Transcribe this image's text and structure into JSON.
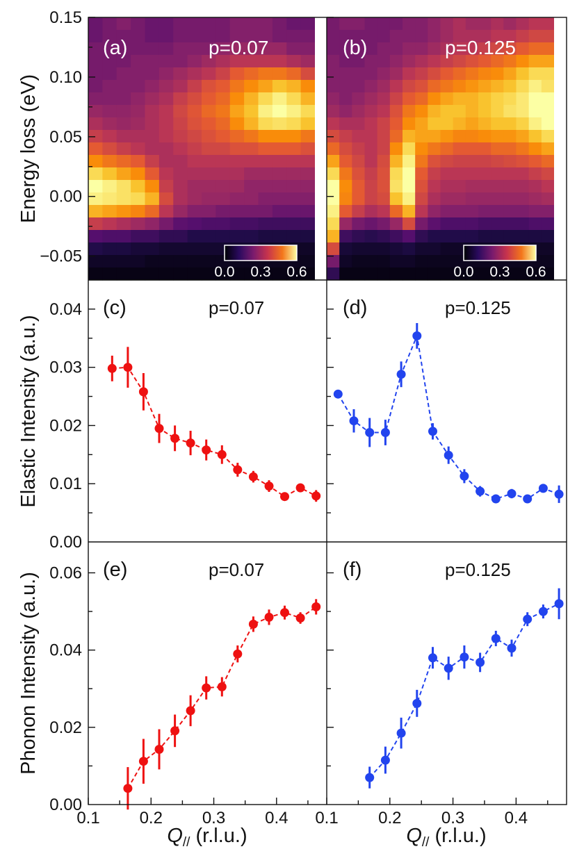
{
  "colors": {
    "red_series": "#ee1111",
    "blue_series": "#2244ee"
  },
  "labels": {
    "energy_ylabel": "Energy loss (eV)",
    "elastic_ylabel": "Elastic Intensity (a.u.)",
    "phonon_ylabel": "Phonon Intensity (a.u.)",
    "xlabel_q": "Q",
    "xlabel_sub": "//",
    "xlabel_unit": " (r.l.u.)"
  },
  "chart_data": [
    {
      "type": "heatmap",
      "panel": "(a)",
      "title": "p=0.07",
      "ylabel": "Energy loss (eV)",
      "ylim": [
        -0.07,
        0.15
      ],
      "yticks": [
        "0.15",
        "0.10",
        "0.05",
        "0.00",
        "−0.05"
      ],
      "colormap": "inferno-like",
      "colorbar": {
        "range": [
          0.0,
          0.6
        ],
        "ticks": [
          "0.0",
          "0.3",
          "0.6"
        ]
      },
      "energies": [
        0.14,
        0.13,
        0.12,
        0.11,
        0.1,
        0.09,
        0.08,
        0.07,
        0.06,
        0.05,
        0.04,
        0.03,
        0.02,
        0.01,
        0.0,
        -0.01,
        -0.02,
        -0.03,
        -0.04,
        -0.05,
        -0.06
      ],
      "intensity_grid": [
        [
          0.18,
          0.2,
          0.22,
          0.2,
          0.18,
          0.18,
          0.2,
          0.2,
          0.2,
          0.2,
          0.22,
          0.22,
          0.22,
          0.2,
          0.18,
          0.18
        ],
        [
          0.18,
          0.2,
          0.2,
          0.2,
          0.18,
          0.18,
          0.2,
          0.2,
          0.2,
          0.2,
          0.22,
          0.22,
          0.22,
          0.2,
          0.2,
          0.2
        ],
        [
          0.2,
          0.2,
          0.2,
          0.2,
          0.2,
          0.2,
          0.22,
          0.22,
          0.22,
          0.24,
          0.25,
          0.25,
          0.25,
          0.25,
          0.22,
          0.22
        ],
        [
          0.2,
          0.2,
          0.2,
          0.22,
          0.22,
          0.22,
          0.22,
          0.24,
          0.26,
          0.28,
          0.3,
          0.3,
          0.3,
          0.3,
          0.28,
          0.26
        ],
        [
          0.2,
          0.2,
          0.22,
          0.22,
          0.22,
          0.24,
          0.26,
          0.28,
          0.3,
          0.33,
          0.38,
          0.4,
          0.42,
          0.42,
          0.4,
          0.35
        ],
        [
          0.2,
          0.22,
          0.22,
          0.22,
          0.24,
          0.26,
          0.28,
          0.32,
          0.36,
          0.38,
          0.42,
          0.45,
          0.48,
          0.52,
          0.5,
          0.45
        ],
        [
          0.22,
          0.22,
          0.22,
          0.24,
          0.26,
          0.28,
          0.32,
          0.35,
          0.38,
          0.4,
          0.45,
          0.5,
          0.55,
          0.58,
          0.55,
          0.5
        ],
        [
          0.25,
          0.24,
          0.24,
          0.25,
          0.28,
          0.3,
          0.34,
          0.37,
          0.4,
          0.42,
          0.48,
          0.52,
          0.58,
          0.6,
          0.58,
          0.55
        ],
        [
          0.28,
          0.26,
          0.25,
          0.26,
          0.28,
          0.3,
          0.33,
          0.36,
          0.38,
          0.4,
          0.45,
          0.5,
          0.55,
          0.56,
          0.55,
          0.52
        ],
        [
          0.32,
          0.3,
          0.28,
          0.28,
          0.28,
          0.3,
          0.32,
          0.34,
          0.36,
          0.38,
          0.4,
          0.42,
          0.45,
          0.45,
          0.45,
          0.42
        ],
        [
          0.38,
          0.35,
          0.32,
          0.3,
          0.28,
          0.28,
          0.3,
          0.32,
          0.34,
          0.34,
          0.36,
          0.36,
          0.38,
          0.38,
          0.38,
          0.36
        ],
        [
          0.45,
          0.42,
          0.4,
          0.38,
          0.32,
          0.28,
          0.28,
          0.3,
          0.3,
          0.3,
          0.3,
          0.3,
          0.3,
          0.3,
          0.3,
          0.3
        ],
        [
          0.55,
          0.52,
          0.48,
          0.45,
          0.38,
          0.3,
          0.28,
          0.28,
          0.28,
          0.28,
          0.28,
          0.26,
          0.26,
          0.26,
          0.26,
          0.26
        ],
        [
          0.6,
          0.58,
          0.56,
          0.52,
          0.45,
          0.32,
          0.28,
          0.26,
          0.26,
          0.26,
          0.26,
          0.24,
          0.24,
          0.24,
          0.24,
          0.24
        ],
        [
          0.58,
          0.57,
          0.56,
          0.55,
          0.5,
          0.35,
          0.28,
          0.26,
          0.25,
          0.25,
          0.24,
          0.24,
          0.22,
          0.22,
          0.22,
          0.22
        ],
        [
          0.5,
          0.48,
          0.46,
          0.44,
          0.4,
          0.3,
          0.25,
          0.22,
          0.22,
          0.2,
          0.2,
          0.2,
          0.2,
          0.18,
          0.18,
          0.18
        ],
        [
          0.32,
          0.3,
          0.28,
          0.26,
          0.24,
          0.2,
          0.16,
          0.15,
          0.14,
          0.14,
          0.13,
          0.13,
          0.12,
          0.12,
          0.12,
          0.12
        ],
        [
          0.15,
          0.14,
          0.14,
          0.12,
          0.12,
          0.1,
          0.1,
          0.08,
          0.08,
          0.08,
          0.08,
          0.08,
          0.07,
          0.07,
          0.07,
          0.07
        ],
        [
          0.08,
          0.07,
          0.07,
          0.06,
          0.06,
          0.05,
          0.05,
          0.05,
          0.05,
          0.05,
          0.05,
          0.05,
          0.04,
          0.04,
          0.04,
          0.04
        ],
        [
          0.04,
          0.04,
          0.04,
          0.04,
          0.03,
          0.03,
          0.03,
          0.03,
          0.03,
          0.03,
          0.03,
          0.03,
          0.03,
          0.03,
          0.03,
          0.03
        ],
        [
          0.02,
          0.02,
          0.02,
          0.02,
          0.02,
          0.02,
          0.02,
          0.02,
          0.02,
          0.02,
          0.02,
          0.02,
          0.02,
          0.02,
          0.02,
          0.02
        ]
      ]
    },
    {
      "type": "heatmap",
      "panel": "(b)",
      "title": "p=0.125",
      "ylim": [
        -0.07,
        0.15
      ],
      "colormap": "inferno-like",
      "colorbar": {
        "range": [
          0.0,
          0.6
        ],
        "ticks": [
          "0.0",
          "0.3",
          "0.6"
        ]
      },
      "energies": [
        0.14,
        0.13,
        0.12,
        0.11,
        0.1,
        0.09,
        0.08,
        0.07,
        0.06,
        0.05,
        0.04,
        0.03,
        0.02,
        0.01,
        0.0,
        -0.01,
        -0.02,
        -0.03,
        -0.04,
        -0.05,
        -0.06
      ],
      "intensity_grid": [
        [
          0.2,
          0.22,
          0.22,
          0.2,
          0.2,
          0.2,
          0.22,
          0.22,
          0.24,
          0.26,
          0.28,
          0.26,
          0.26,
          0.28,
          0.26,
          0.28,
          0.3,
          0.3
        ],
        [
          0.2,
          0.2,
          0.2,
          0.2,
          0.2,
          0.22,
          0.22,
          0.22,
          0.24,
          0.26,
          0.28,
          0.28,
          0.28,
          0.3,
          0.3,
          0.32,
          0.34,
          0.34
        ],
        [
          0.2,
          0.2,
          0.2,
          0.2,
          0.22,
          0.22,
          0.24,
          0.24,
          0.26,
          0.28,
          0.3,
          0.3,
          0.32,
          0.34,
          0.35,
          0.38,
          0.4,
          0.4
        ],
        [
          0.22,
          0.2,
          0.2,
          0.22,
          0.22,
          0.24,
          0.26,
          0.28,
          0.3,
          0.32,
          0.34,
          0.36,
          0.38,
          0.4,
          0.42,
          0.45,
          0.48,
          0.48
        ],
        [
          0.22,
          0.22,
          0.22,
          0.22,
          0.24,
          0.26,
          0.3,
          0.32,
          0.35,
          0.38,
          0.4,
          0.42,
          0.44,
          0.45,
          0.48,
          0.52,
          0.55,
          0.55
        ],
        [
          0.22,
          0.22,
          0.22,
          0.24,
          0.26,
          0.3,
          0.34,
          0.36,
          0.4,
          0.42,
          0.44,
          0.46,
          0.48,
          0.5,
          0.52,
          0.55,
          0.58,
          0.56
        ],
        [
          0.24,
          0.22,
          0.24,
          0.26,
          0.28,
          0.33,
          0.38,
          0.4,
          0.45,
          0.48,
          0.5,
          0.5,
          0.52,
          0.54,
          0.55,
          0.57,
          0.6,
          0.6
        ],
        [
          0.26,
          0.24,
          0.26,
          0.28,
          0.3,
          0.36,
          0.42,
          0.45,
          0.5,
          0.52,
          0.52,
          0.5,
          0.52,
          0.54,
          0.56,
          0.57,
          0.6,
          0.6
        ],
        [
          0.3,
          0.28,
          0.28,
          0.3,
          0.33,
          0.38,
          0.45,
          0.48,
          0.52,
          0.52,
          0.5,
          0.48,
          0.5,
          0.52,
          0.52,
          0.54,
          0.58,
          0.6
        ],
        [
          0.35,
          0.32,
          0.3,
          0.3,
          0.33,
          0.4,
          0.5,
          0.48,
          0.48,
          0.46,
          0.44,
          0.44,
          0.45,
          0.46,
          0.46,
          0.48,
          0.52,
          0.55
        ],
        [
          0.4,
          0.35,
          0.32,
          0.3,
          0.33,
          0.45,
          0.55,
          0.45,
          0.42,
          0.4,
          0.38,
          0.38,
          0.38,
          0.4,
          0.4,
          0.42,
          0.45,
          0.48
        ],
        [
          0.48,
          0.38,
          0.34,
          0.3,
          0.35,
          0.5,
          0.58,
          0.42,
          0.36,
          0.34,
          0.33,
          0.33,
          0.33,
          0.34,
          0.35,
          0.36,
          0.38,
          0.4
        ],
        [
          0.55,
          0.42,
          0.36,
          0.32,
          0.36,
          0.55,
          0.6,
          0.38,
          0.32,
          0.3,
          0.3,
          0.3,
          0.3,
          0.3,
          0.3,
          0.3,
          0.32,
          0.34
        ],
        [
          0.6,
          0.45,
          0.38,
          0.33,
          0.36,
          0.56,
          0.6,
          0.36,
          0.3,
          0.28,
          0.28,
          0.27,
          0.27,
          0.27,
          0.27,
          0.27,
          0.28,
          0.3
        ],
        [
          0.6,
          0.44,
          0.38,
          0.33,
          0.35,
          0.52,
          0.58,
          0.34,
          0.28,
          0.26,
          0.26,
          0.25,
          0.25,
          0.25,
          0.25,
          0.25,
          0.26,
          0.27
        ],
        [
          0.58,
          0.38,
          0.32,
          0.28,
          0.3,
          0.4,
          0.5,
          0.3,
          0.24,
          0.22,
          0.22,
          0.22,
          0.21,
          0.21,
          0.21,
          0.21,
          0.22,
          0.22
        ],
        [
          0.55,
          0.25,
          0.2,
          0.18,
          0.2,
          0.25,
          0.35,
          0.2,
          0.16,
          0.14,
          0.14,
          0.14,
          0.13,
          0.13,
          0.13,
          0.13,
          0.14,
          0.14
        ],
        [
          0.5,
          0.12,
          0.1,
          0.09,
          0.1,
          0.12,
          0.15,
          0.1,
          0.08,
          0.08,
          0.08,
          0.08,
          0.07,
          0.07,
          0.07,
          0.07,
          0.07,
          0.07
        ],
        [
          0.35,
          0.06,
          0.05,
          0.05,
          0.05,
          0.06,
          0.07,
          0.05,
          0.05,
          0.04,
          0.04,
          0.04,
          0.04,
          0.04,
          0.04,
          0.04,
          0.04,
          0.04
        ],
        [
          0.2,
          0.04,
          0.03,
          0.03,
          0.03,
          0.04,
          0.04,
          0.03,
          0.03,
          0.03,
          0.03,
          0.03,
          0.03,
          0.03,
          0.03,
          0.03,
          0.03,
          0.03
        ],
        [
          0.1,
          0.02,
          0.02,
          0.02,
          0.02,
          0.02,
          0.02,
          0.02,
          0.02,
          0.02,
          0.02,
          0.02,
          0.02,
          0.02,
          0.02,
          0.02,
          0.02,
          0.02
        ]
      ]
    },
    {
      "type": "scatter",
      "panel": "(c)",
      "title": "p=0.07",
      "series_color": "#ee1111",
      "ylabel": "Elastic Intensity (a.u.)",
      "xlim": [
        0.1,
        0.48
      ],
      "ylim": [
        0.0,
        0.045
      ],
      "yticks": [
        "0.00",
        "0.01",
        "0.02",
        "0.03",
        "0.04"
      ],
      "x": [
        0.138,
        0.163,
        0.188,
        0.213,
        0.238,
        0.263,
        0.288,
        0.313,
        0.338,
        0.363,
        0.388,
        0.413,
        0.438,
        0.463
      ],
      "y": [
        0.0298,
        0.03,
        0.0258,
        0.0195,
        0.0178,
        0.017,
        0.0158,
        0.015,
        0.0124,
        0.0112,
        0.0096,
        0.0078,
        0.0093,
        0.0079
      ],
      "err": [
        0.0022,
        0.0035,
        0.0032,
        0.0025,
        0.0022,
        0.0021,
        0.0018,
        0.0016,
        0.0012,
        0.001,
        0.001,
        0.0006,
        0.0007,
        0.001
      ]
    },
    {
      "type": "scatter",
      "panel": "(d)",
      "title": "p=0.125",
      "series_color": "#2244ee",
      "xlim": [
        0.1,
        0.48
      ],
      "ylim": [
        0.0,
        0.045
      ],
      "x": [
        0.118,
        0.143,
        0.168,
        0.193,
        0.218,
        0.243,
        0.268,
        0.293,
        0.318,
        0.343,
        0.368,
        0.393,
        0.418,
        0.443,
        0.468
      ],
      "y": [
        0.0254,
        0.0208,
        0.0188,
        0.0188,
        0.0288,
        0.0354,
        0.019,
        0.0149,
        0.0113,
        0.0087,
        0.0074,
        0.0083,
        0.0074,
        0.0092,
        0.0082
      ],
      "err": [
        0.0005,
        0.002,
        0.0025,
        0.0022,
        0.0022,
        0.0022,
        0.0014,
        0.0015,
        0.0012,
        0.0009,
        0.0006,
        0.0008,
        0.0005,
        0.0006,
        0.0015
      ]
    },
    {
      "type": "scatter",
      "panel": "(e)",
      "title": "p=0.07",
      "series_color": "#ee1111",
      "ylabel": "Phonon Intensity (a.u.)",
      "xlabel": "Q// (r.l.u.)",
      "xlim": [
        0.1,
        0.48
      ],
      "ylim": [
        0.0,
        0.068
      ],
      "xticks": [
        "0.1",
        "0.2",
        "0.3",
        "0.4"
      ],
      "yticks": [
        "0.00",
        "0.02",
        "0.04",
        "0.06"
      ],
      "x": [
        0.163,
        0.188,
        0.213,
        0.238,
        0.263,
        0.288,
        0.313,
        0.338,
        0.363,
        0.388,
        0.413,
        0.438,
        0.463
      ],
      "y": [
        0.0042,
        0.0112,
        0.0143,
        0.0191,
        0.0243,
        0.0302,
        0.0305,
        0.039,
        0.0467,
        0.0485,
        0.0497,
        0.0483,
        0.0512
      ],
      "err": [
        0.0055,
        0.0058,
        0.0052,
        0.0042,
        0.004,
        0.003,
        0.0025,
        0.0022,
        0.002,
        0.002,
        0.0018,
        0.0015,
        0.002
      ]
    },
    {
      "type": "scatter",
      "panel": "(f)",
      "title": "p=0.125",
      "series_color": "#2244ee",
      "xlabel": "Q// (r.l.u.)",
      "xlim": [
        0.1,
        0.48
      ],
      "ylim": [
        0.0,
        0.068
      ],
      "xticks": [
        "0.1",
        "0.2",
        "0.3",
        "0.4"
      ],
      "x": [
        0.168,
        0.193,
        0.218,
        0.243,
        0.268,
        0.293,
        0.318,
        0.343,
        0.368,
        0.393,
        0.418,
        0.443,
        0.468
      ],
      "y": [
        0.007,
        0.0115,
        0.0185,
        0.0262,
        0.038,
        0.0353,
        0.0382,
        0.0368,
        0.043,
        0.0405,
        0.048,
        0.05,
        0.052
      ],
      "err": [
        0.0028,
        0.0035,
        0.004,
        0.0035,
        0.0028,
        0.003,
        0.003,
        0.0025,
        0.002,
        0.0022,
        0.0018,
        0.0018,
        0.004
      ]
    }
  ]
}
